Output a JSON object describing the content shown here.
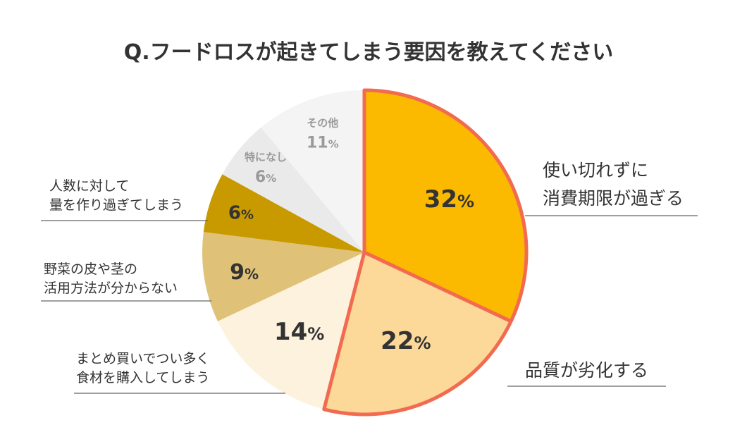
{
  "chart_data": {
    "type": "pie",
    "title": "Q.フードロスが起きてしまう要因を教えてください",
    "unit": "%",
    "slices": [
      {
        "label_lines": [
          "使い切れずに",
          "消費期限が過ぎる"
        ],
        "value": 32,
        "value_text": "32",
        "color": "#fbb900",
        "highlight": true
      },
      {
        "label_lines": [
          "品質が劣化する"
        ],
        "value": 22,
        "value_text": "22",
        "color": "#fcd899",
        "highlight": true
      },
      {
        "label_lines": [
          "まとめ買いでつい多く",
          "食材を購入してしまう"
        ],
        "value": 14,
        "value_text": "14",
        "color": "#fdf2de",
        "highlight": false
      },
      {
        "label_lines": [
          "野菜の皮や茎の",
          "活用方法が分からない"
        ],
        "value": 9,
        "value_text": "9",
        "color": "#dfc277",
        "highlight": false
      },
      {
        "label_lines": [
          "人数に対して",
          "量を作り過ぎてしまう"
        ],
        "value": 6,
        "value_text": "6",
        "color": "#c99a00",
        "highlight": false
      },
      {
        "label_lines": [
          "特になし"
        ],
        "value": 6,
        "value_text": "6",
        "color": "#eaeaea",
        "highlight": false
      },
      {
        "label_lines": [
          "その他"
        ],
        "value": 11,
        "value_text": "11",
        "color": "#f4f4f4",
        "highlight": false
      }
    ],
    "highlight_color": "#f26a4f",
    "start": "12 o'clock",
    "direction": "clockwise"
  }
}
